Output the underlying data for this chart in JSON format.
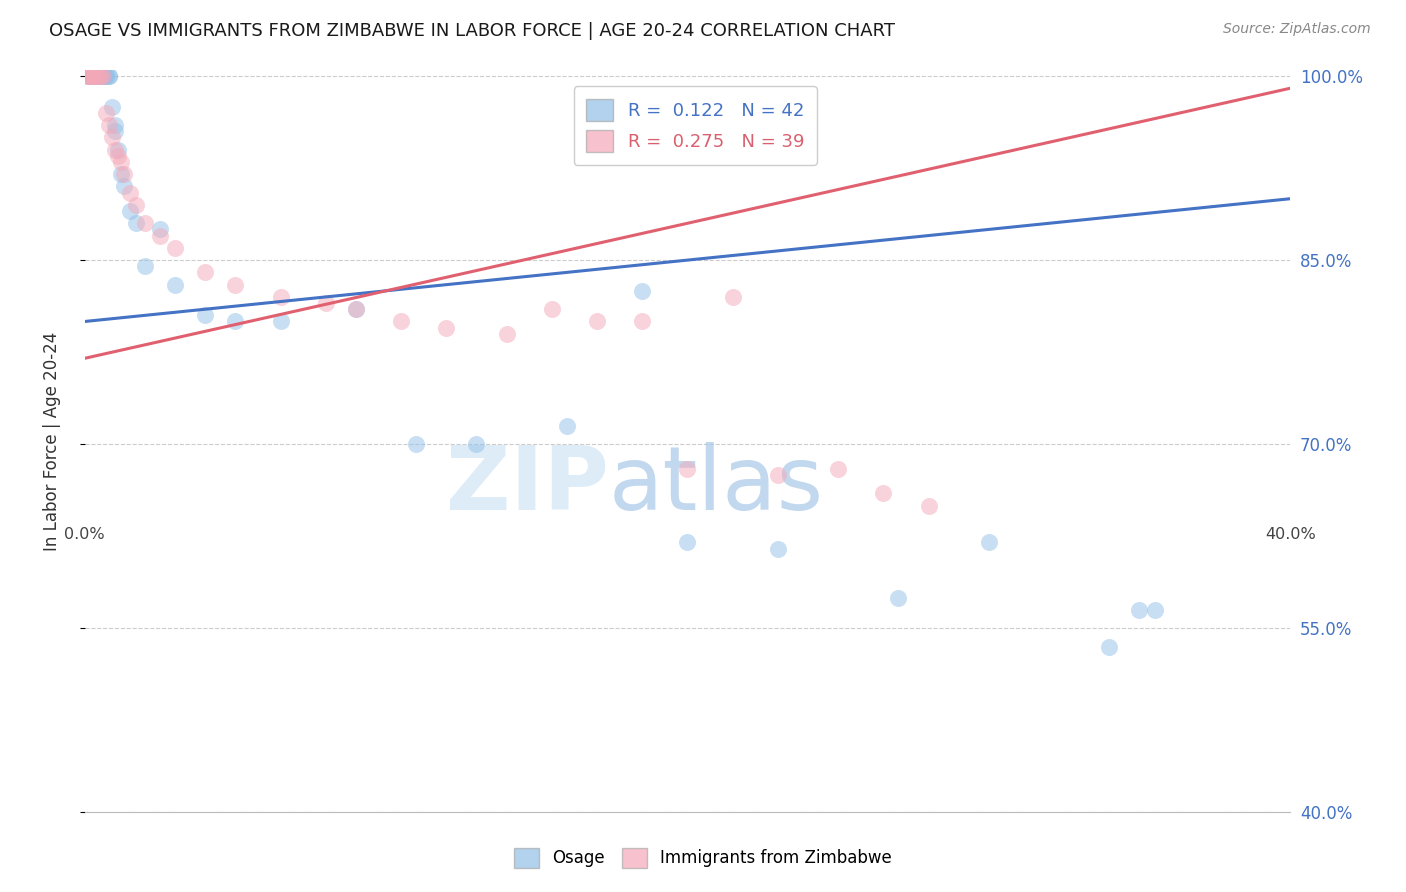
{
  "title": "OSAGE VS IMMIGRANTS FROM ZIMBABWE IN LABOR FORCE | AGE 20-24 CORRELATION CHART",
  "source": "Source: ZipAtlas.com",
  "ylabel": "In Labor Force | Age 20-24",
  "xlim": [
    0.0,
    0.4
  ],
  "ylim": [
    0.4,
    1.005
  ],
  "yticks": [
    0.4,
    0.55,
    0.7,
    0.85,
    1.0
  ],
  "ytick_labels": [
    "40.0%",
    "55.0%",
    "70.0%",
    "85.0%",
    "100.0%"
  ],
  "blue_color": "#92c0e8",
  "pink_color": "#f4a8b8",
  "blue_line_color": "#4472c4",
  "pink_line_color": "#e06070",
  "legend_label1": "Osage",
  "legend_label2": "Immigrants from Zimbabwe",
  "watermark_zip": "ZIP",
  "watermark_atlas": "atlas",
  "blue_x": [
    0.001,
    0.001,
    0.002,
    0.002,
    0.003,
    0.003,
    0.004,
    0.004,
    0.005,
    0.005,
    0.006,
    0.006,
    0.007,
    0.007,
    0.008,
    0.008,
    0.009,
    0.01,
    0.01,
    0.011,
    0.012,
    0.013,
    0.015,
    0.017,
    0.02,
    0.025,
    0.03,
    0.04,
    0.05,
    0.065,
    0.09,
    0.11,
    0.13,
    0.16,
    0.185,
    0.2,
    0.23,
    0.27,
    0.3,
    0.34,
    0.35,
    0.355
  ],
  "blue_y": [
    1.0,
    1.0,
    1.0,
    1.0,
    1.0,
    1.0,
    1.0,
    1.0,
    1.0,
    1.0,
    1.0,
    1.0,
    1.0,
    1.0,
    1.0,
    1.0,
    0.975,
    0.96,
    0.955,
    0.94,
    0.92,
    0.91,
    0.89,
    0.88,
    0.845,
    0.875,
    0.83,
    0.805,
    0.8,
    0.8,
    0.81,
    0.7,
    0.7,
    0.715,
    0.825,
    0.62,
    0.615,
    0.575,
    0.62,
    0.535,
    0.565,
    0.565
  ],
  "pink_x": [
    0.001,
    0.001,
    0.002,
    0.002,
    0.003,
    0.003,
    0.004,
    0.005,
    0.005,
    0.006,
    0.007,
    0.008,
    0.009,
    0.01,
    0.011,
    0.012,
    0.013,
    0.015,
    0.017,
    0.02,
    0.025,
    0.03,
    0.04,
    0.05,
    0.065,
    0.08,
    0.09,
    0.105,
    0.12,
    0.14,
    0.155,
    0.17,
    0.185,
    0.2,
    0.215,
    0.23,
    0.25,
    0.265,
    0.28
  ],
  "pink_y": [
    1.0,
    1.0,
    1.0,
    1.0,
    1.0,
    1.0,
    1.0,
    1.0,
    1.0,
    1.0,
    0.97,
    0.96,
    0.95,
    0.94,
    0.935,
    0.93,
    0.92,
    0.905,
    0.895,
    0.88,
    0.87,
    0.86,
    0.84,
    0.83,
    0.82,
    0.815,
    0.81,
    0.8,
    0.795,
    0.79,
    0.81,
    0.8,
    0.8,
    0.68,
    0.82,
    0.675,
    0.68,
    0.66,
    0.65
  ],
  "blue_trend_x": [
    0.0,
    0.4
  ],
  "blue_trend_y": [
    0.8,
    0.9
  ],
  "pink_trend_x": [
    0.0,
    0.4
  ],
  "pink_trend_y": [
    0.77,
    0.99
  ]
}
